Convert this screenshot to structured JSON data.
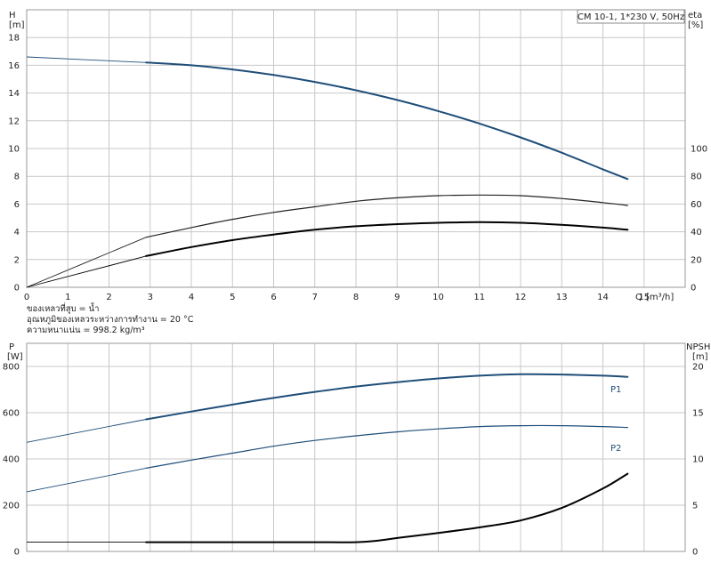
{
  "chart_data": [
    {
      "type": "line",
      "title": "CM 10-1, 1*230 V, 50Hz",
      "xlabel": "Q [m³/h]",
      "x_axis_label": "Q",
      "x_axis_unit": "[m³/h]",
      "y_left_label": "H",
      "y_left_unit": "[m]",
      "y_right_label": "eta",
      "y_right_unit": "[%]",
      "xlim": [
        0,
        16
      ],
      "ylim_left": [
        0,
        20
      ],
      "ylim_right": [
        0,
        200
      ],
      "x_ticks": [
        "0",
        "1",
        "2",
        "3",
        "4",
        "5",
        "6",
        "7",
        "8",
        "9",
        "10",
        "11",
        "12",
        "13",
        "14",
        "15"
      ],
      "y_left_ticks": [
        "0",
        "2",
        "4",
        "6",
        "8",
        "10",
        "12",
        "14",
        "16",
        "18"
      ],
      "y_right_ticks": [
        "0",
        "20",
        "40",
        "60",
        "80",
        "100"
      ],
      "grid": true,
      "notes": [
        "ของเหลวที่สูบ = น้ำ",
        "อุณหภูมิของเหลวระหว่างการทำงาน = 20 °C",
        "ความหนาแน่น = 998.2 kg/m³"
      ],
      "series": [
        {
          "axis": "left",
          "color": "#1f4e79",
          "x": [
            0,
            2.9,
            4,
            5,
            6,
            7,
            8,
            9,
            10,
            11,
            12,
            13,
            14,
            14.6
          ],
          "y": [
            16.6,
            16.2,
            16.0,
            15.7,
            15.3,
            14.8,
            14.2,
            13.5,
            12.7,
            11.8,
            10.8,
            9.7,
            8.5,
            7.8
          ]
        },
        {
          "axis": "right",
          "color": "#222222",
          "x": [
            0,
            2.9,
            4,
            5,
            6,
            7,
            8,
            9,
            10,
            11,
            12,
            13,
            14,
            14.6
          ],
          "y": [
            0,
            36,
            43,
            49,
            54,
            58,
            62,
            64.5,
            66,
            66.5,
            66,
            64,
            61,
            59
          ]
        },
        {
          "axis": "right",
          "color": "#000000",
          "x": [
            0,
            2.9,
            4,
            5,
            6,
            7,
            8,
            9,
            10,
            11,
            12,
            13,
            14,
            14.6
          ],
          "y": [
            0,
            22.5,
            29,
            34,
            38,
            41.5,
            44,
            45.5,
            46.5,
            47,
            46.5,
            45,
            43,
            41.5
          ]
        }
      ]
    },
    {
      "type": "line",
      "xlim": [
        0,
        16
      ],
      "y_left_label": "P",
      "y_left_unit": "[W]",
      "y_right_label": "NPSH",
      "y_right_unit": "[m]",
      "ylim_left": [
        0,
        900
      ],
      "ylim_right": [
        0,
        22.5
      ],
      "y_left_ticks": [
        "0",
        "200",
        "400",
        "600",
        "800"
      ],
      "y_right_ticks": [
        "0",
        "5",
        "10",
        "15",
        "20"
      ],
      "grid": true,
      "series": [
        {
          "name": "P1",
          "axis": "left",
          "color": "#1f4e79",
          "x": [
            0,
            2.9,
            4,
            5,
            6,
            7,
            8,
            9,
            10,
            11,
            12,
            13,
            14,
            14.6
          ],
          "y": [
            472,
            571,
            605,
            635,
            664,
            690,
            713,
            732,
            748,
            760,
            766,
            765,
            760,
            755
          ]
        },
        {
          "name": "P2",
          "axis": "left",
          "color": "#1f4e79",
          "x": [
            0,
            2.9,
            4,
            5,
            6,
            7,
            8,
            9,
            10,
            11,
            12,
            13,
            14,
            14.6
          ],
          "y": [
            258,
            360,
            395,
            425,
            455,
            480,
            500,
            517,
            530,
            540,
            544,
            544,
            540,
            536
          ]
        },
        {
          "axis": "right",
          "color": "#000000",
          "x": [
            0,
            2.9,
            4,
            5,
            6,
            7,
            8,
            8.5,
            9,
            10,
            11,
            12,
            13,
            14,
            14.6
          ],
          "y": [
            1.0,
            1.0,
            1.0,
            1.0,
            1.0,
            1.0,
            1.0,
            1.15,
            1.45,
            2.0,
            2.6,
            3.35,
            4.7,
            6.8,
            8.4
          ]
        }
      ]
    }
  ]
}
